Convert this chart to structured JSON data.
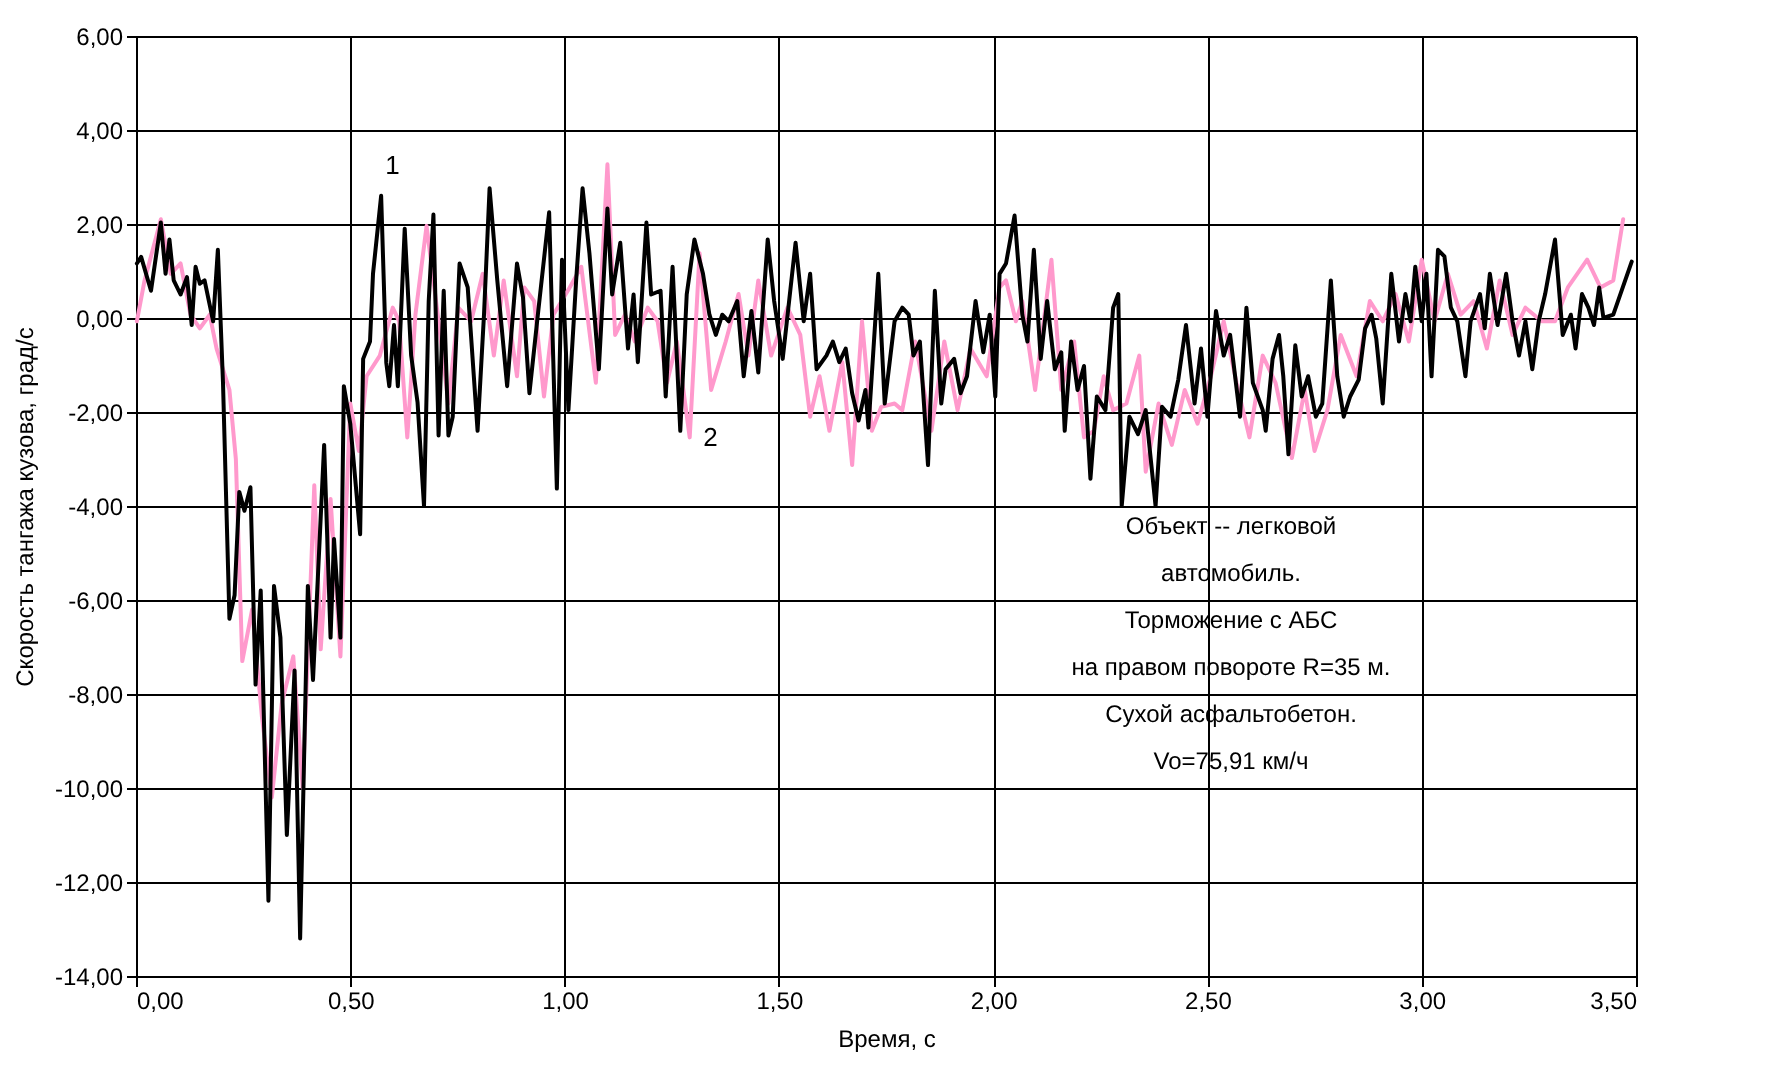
{
  "chart_data": {
    "type": "line",
    "xlabel": "Время, с",
    "ylabel": "Скорость тангажа кузова, град/с",
    "xlim": [
      0,
      3.5
    ],
    "ylim": [
      -14,
      6
    ],
    "xticks": [
      {
        "value": 0,
        "label": "0,00"
      },
      {
        "value": 0.5,
        "label": "0,50"
      },
      {
        "value": 1,
        "label": "1,00"
      },
      {
        "value": 1.5,
        "label": "1,50"
      },
      {
        "value": 2,
        "label": "2,00"
      },
      {
        "value": 2.5,
        "label": "2,50"
      },
      {
        "value": 3,
        "label": "3,00"
      },
      {
        "value": 3.5,
        "label": "3,50"
      }
    ],
    "yticks": [
      {
        "value": -14,
        "label": "-14,00"
      },
      {
        "value": -12,
        "label": "-12,00"
      },
      {
        "value": -10,
        "label": "-10,00"
      },
      {
        "value": -8,
        "label": "-8,00"
      },
      {
        "value": -6,
        "label": "-6,00"
      },
      {
        "value": -4,
        "label": "-4,00"
      },
      {
        "value": -2,
        "label": "-2,00"
      },
      {
        "value": 0,
        "label": "0,00"
      },
      {
        "value": 2,
        "label": "2,00"
      },
      {
        "value": 4,
        "label": "4,00"
      },
      {
        "value": 6,
        "label": "6,00"
      }
    ],
    "grid": true,
    "line_style": "solid",
    "marker": "none",
    "series": [
      {
        "color": "#ff99cc",
        "x": [
          0.002,
          0.02,
          0.058,
          0.081,
          0.104,
          0.127,
          0.149,
          0.172,
          0.188,
          0.218,
          0.233,
          0.248,
          0.271,
          0.294,
          0.317,
          0.34,
          0.367,
          0.389,
          0.416,
          0.431,
          0.454,
          0.477,
          0.5,
          0.52,
          0.538,
          0.569,
          0.599,
          0.614,
          0.633,
          0.652,
          0.678,
          0.706,
          0.729,
          0.752,
          0.782,
          0.809,
          0.835,
          0.858,
          0.889,
          0.906,
          0.929,
          0.952,
          0.974,
          1.012,
          1.039,
          1.073,
          1.1,
          1.118,
          1.141,
          1.164,
          1.194,
          1.217,
          1.239,
          1.262,
          1.292,
          1.315,
          1.342,
          1.376,
          1.406,
          1.429,
          1.452,
          1.482,
          1.52,
          1.55,
          1.573,
          1.595,
          1.618,
          1.648,
          1.671,
          1.694,
          1.717,
          1.739,
          1.77,
          1.788,
          1.818,
          1.856,
          1.886,
          1.917,
          1.947,
          1.985,
          2.015,
          2.03,
          2.053,
          2.068,
          2.098,
          2.136,
          2.159,
          2.189,
          2.212,
          2.235,
          2.258,
          2.28,
          2.311,
          2.341,
          2.356,
          2.386,
          2.417,
          2.447,
          2.477,
          2.508,
          2.538,
          2.568,
          2.598,
          2.629,
          2.659,
          2.697,
          2.727,
          2.75,
          2.78,
          2.811,
          2.848,
          2.879,
          2.909,
          2.939,
          2.97,
          3.0,
          3.03,
          3.061,
          3.091,
          3.121,
          3.152,
          3.182,
          3.212,
          3.242,
          3.28,
          3.311,
          3.341,
          3.386,
          3.417,
          3.447,
          3.47
        ],
        "values": [
          -0.07,
          0.8,
          2.1,
          0.94,
          1.16,
          0.07,
          -0.22,
          0.07,
          -0.65,
          -1.53,
          -3.0,
          -7.3,
          -6.2,
          -8.5,
          -10.2,
          -8.2,
          -7.2,
          -10.0,
          -3.56,
          -7.05,
          -3.85,
          -7.2,
          -1.82,
          -2.83,
          -1.24,
          -0.8,
          0.22,
          -0.07,
          -2.54,
          0.07,
          1.96,
          -0.07,
          -1.82,
          0.22,
          -0.07,
          0.94,
          -0.8,
          0.8,
          -1.24,
          0.65,
          0.36,
          -1.67,
          0.07,
          0.65,
          1.09,
          -1.38,
          3.27,
          -0.36,
          0.07,
          -0.5,
          0.22,
          -0.07,
          -1.38,
          -0.5,
          -2.54,
          1.38,
          -1.53,
          -0.5,
          0.51,
          -0.8,
          0.8,
          -0.8,
          0.22,
          -0.36,
          -2.1,
          -1.24,
          -2.4,
          -0.94,
          -3.13,
          -0.07,
          -2.4,
          -1.89,
          -1.82,
          -1.96,
          -0.5,
          -2.4,
          -0.5,
          -1.96,
          -0.65,
          -1.24,
          0.65,
          0.8,
          -0.07,
          0.36,
          -1.53,
          1.24,
          -1.53,
          -0.5,
          -2.54,
          -2.4,
          -1.24,
          -1.96,
          -1.82,
          -0.8,
          -3.27,
          -1.82,
          -2.7,
          -1.53,
          -2.25,
          -1.24,
          -0.07,
          -1.38,
          -2.54,
          -0.8,
          -1.38,
          -2.98,
          -1.53,
          -2.83,
          -1.96,
          -0.36,
          -1.24,
          0.36,
          -0.07,
          0.51,
          -0.5,
          1.24,
          -0.07,
          0.94,
          0.07,
          0.36,
          -0.65,
          0.8,
          -0.36,
          0.22,
          -0.07,
          -0.07,
          0.65,
          1.24,
          0.65,
          0.8,
          2.1
        ]
      },
      {
        "color": "#000000",
        "x": [
          0.002,
          0.012,
          0.035,
          0.058,
          0.069,
          0.078,
          0.088,
          0.104,
          0.119,
          0.13,
          0.139,
          0.149,
          0.16,
          0.18,
          0.191,
          0.203,
          0.218,
          0.23,
          0.241,
          0.253,
          0.267,
          0.279,
          0.291,
          0.309,
          0.322,
          0.337,
          0.352,
          0.37,
          0.383,
          0.401,
          0.413,
          0.439,
          0.454,
          0.462,
          0.477,
          0.485,
          0.5,
          0.523,
          0.53,
          0.546,
          0.553,
          0.572,
          0.584,
          0.591,
          0.602,
          0.611,
          0.627,
          0.642,
          0.657,
          0.672,
          0.683,
          0.694,
          0.706,
          0.718,
          0.729,
          0.739,
          0.755,
          0.774,
          0.797,
          0.812,
          0.825,
          0.843,
          0.866,
          0.889,
          0.903,
          0.918,
          0.936,
          0.964,
          0.982,
          0.994,
          1.009,
          1.027,
          1.042,
          1.058,
          1.08,
          1.1,
          1.111,
          1.13,
          1.148,
          1.161,
          1.171,
          1.191,
          1.202,
          1.224,
          1.236,
          1.252,
          1.27,
          1.285,
          1.303,
          1.323,
          1.338,
          1.353,
          1.368,
          1.383,
          1.403,
          1.418,
          1.436,
          1.452,
          1.474,
          1.489,
          1.509,
          1.539,
          1.558,
          1.573,
          1.588,
          1.611,
          1.626,
          1.641,
          1.656,
          1.671,
          1.686,
          1.702,
          1.709,
          1.732,
          1.747,
          1.77,
          1.788,
          1.803,
          1.814,
          1.829,
          1.848,
          1.864,
          1.879,
          1.889,
          1.909,
          1.924,
          1.939,
          1.959,
          1.977,
          1.992,
          2.005,
          2.015,
          2.03,
          2.05,
          2.068,
          2.08,
          2.095,
          2.111,
          2.126,
          2.144,
          2.159,
          2.167,
          2.182,
          2.197,
          2.212,
          2.227,
          2.242,
          2.262,
          2.28,
          2.292,
          2.3,
          2.318,
          2.338,
          2.356,
          2.379,
          2.394,
          2.414,
          2.432,
          2.45,
          2.47,
          2.485,
          2.5,
          2.52,
          2.538,
          2.553,
          2.576,
          2.591,
          2.606,
          2.629,
          2.636,
          2.652,
          2.667,
          2.677,
          2.689,
          2.705,
          2.72,
          2.735,
          2.753,
          2.768,
          2.788,
          2.803,
          2.818,
          2.833,
          2.853,
          2.868,
          2.883,
          2.894,
          2.909,
          2.929,
          2.947,
          2.962,
          2.974,
          2.985,
          3.0,
          3.011,
          3.023,
          3.038,
          3.053,
          3.068,
          3.083,
          3.102,
          3.114,
          3.136,
          3.147,
          3.159,
          3.177,
          3.197,
          3.212,
          3.227,
          3.242,
          3.258,
          3.273,
          3.288,
          3.311,
          3.329,
          3.348,
          3.359,
          3.374,
          3.389,
          3.402,
          3.414,
          3.424,
          3.447,
          3.49
        ],
        "values": [
          1.16,
          1.3,
          0.58,
          2.03,
          0.94,
          1.67,
          0.8,
          0.5,
          0.87,
          -0.15,
          1.09,
          0.73,
          0.8,
          -0.07,
          1.45,
          -1.38,
          -6.4,
          -5.9,
          -3.7,
          -4.1,
          -3.6,
          -7.8,
          -5.8,
          -12.4,
          -5.7,
          -6.8,
          -11.0,
          -7.5,
          -13.2,
          -5.7,
          -7.7,
          -2.7,
          -6.8,
          -4.7,
          -6.8,
          -1.45,
          -2.25,
          -4.6,
          -0.87,
          -0.5,
          0.94,
          2.6,
          -0.95,
          -1.45,
          -0.15,
          -1.45,
          1.9,
          -0.8,
          -1.8,
          -4.0,
          0.36,
          2.2,
          -2.5,
          0.58,
          -2.5,
          -2.1,
          1.16,
          0.65,
          -2.4,
          0.07,
          2.76,
          0.8,
          -1.45,
          1.16,
          0.44,
          -1.6,
          -0.07,
          2.25,
          -3.63,
          1.24,
          -1.96,
          0.8,
          2.76,
          1.38,
          -1.09,
          2.33,
          0.5,
          1.6,
          -0.65,
          0.5,
          -0.94,
          2.03,
          0.5,
          0.58,
          -1.67,
          1.09,
          -2.4,
          0.5,
          1.67,
          0.94,
          0.07,
          -0.36,
          0.07,
          -0.07,
          0.36,
          -1.24,
          0.15,
          -1.16,
          1.67,
          0.36,
          -0.87,
          1.6,
          -0.07,
          0.94,
          -1.09,
          -0.8,
          -0.5,
          -0.94,
          -0.65,
          -1.6,
          -2.18,
          -1.53,
          -2.33,
          0.94,
          -1.82,
          -0.07,
          0.22,
          0.07,
          -0.8,
          -0.5,
          -3.13,
          0.58,
          -1.82,
          -1.09,
          -0.87,
          -1.6,
          -1.24,
          0.36,
          -0.73,
          0.07,
          -1.67,
          0.94,
          1.16,
          2.18,
          0.07,
          -0.5,
          1.45,
          -0.87,
          0.36,
          -1.09,
          -0.73,
          -2.4,
          -0.5,
          -1.53,
          -1.02,
          -3.42,
          -1.67,
          -1.96,
          0.22,
          0.51,
          -4.0,
          -2.1,
          -2.47,
          -1.96,
          -4.0,
          -1.89,
          -2.1,
          -1.31,
          -0.15,
          -1.82,
          -0.65,
          -2.1,
          0.15,
          -0.8,
          -0.36,
          -2.1,
          0.22,
          -1.38,
          -1.96,
          -2.4,
          -0.87,
          -0.36,
          -1.24,
          -2.9,
          -0.58,
          -1.67,
          -1.24,
          -2.1,
          -1.82,
          0.8,
          -1.24,
          -2.1,
          -1.67,
          -1.31,
          -0.22,
          0.07,
          -0.44,
          -1.82,
          0.94,
          -0.5,
          0.51,
          -0.07,
          1.09,
          -0.07,
          0.94,
          -1.24,
          1.45,
          1.31,
          0.22,
          -0.07,
          -1.24,
          -0.07,
          0.51,
          -0.22,
          0.94,
          -0.15,
          0.94,
          -0.07,
          -0.8,
          -0.07,
          -1.09,
          -0.07,
          0.51,
          1.67,
          -0.36,
          0.07,
          -0.65,
          0.51,
          0.22,
          -0.15,
          0.65,
          0.0,
          0.07,
          1.2
        ]
      }
    ],
    "annotations": [
      "1",
      "2",
      "Объект -- легковой\nавтомобиль.\nТорможение с АБС\nна правом повороте R=35 м.\nСухой асфальтобетон.\nVo=75,91 км/ч"
    ]
  }
}
